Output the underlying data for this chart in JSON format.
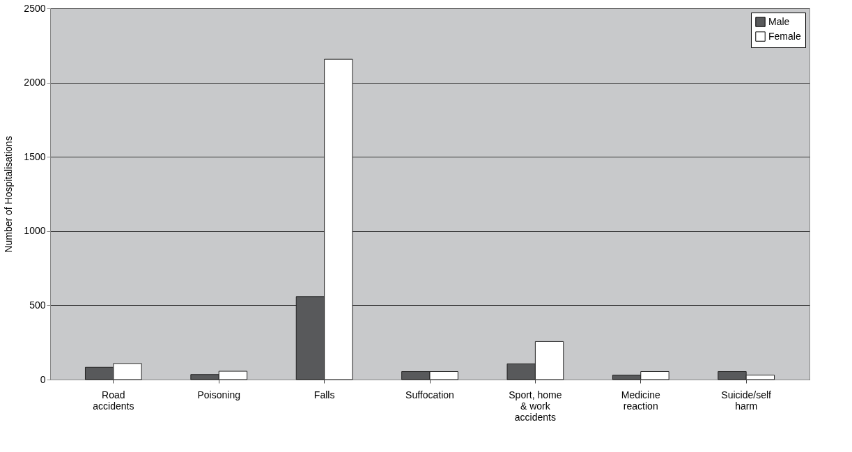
{
  "chart_data": {
    "type": "bar",
    "ylabel": "Number of Hospitalisations",
    "categories": [
      "Road accidents",
      "Poisoning",
      "Falls",
      "Suffocation",
      "Sport, home & work accidents",
      "Medicine reaction",
      "Suicide/self harm"
    ],
    "series": [
      {
        "name": "Male",
        "color": "#58595b",
        "values": [
          83,
          34,
          559,
          54,
          106,
          30,
          54
        ]
      },
      {
        "name": "Female",
        "color": "#ffffff",
        "values": [
          108,
          56,
          2157,
          54,
          256,
          54,
          30
        ]
      }
    ],
    "ylim": [
      0,
      2500
    ],
    "yticks": [
      0,
      500,
      1000,
      1500,
      2000,
      2500
    ],
    "grid": "y",
    "legend": "top right"
  }
}
